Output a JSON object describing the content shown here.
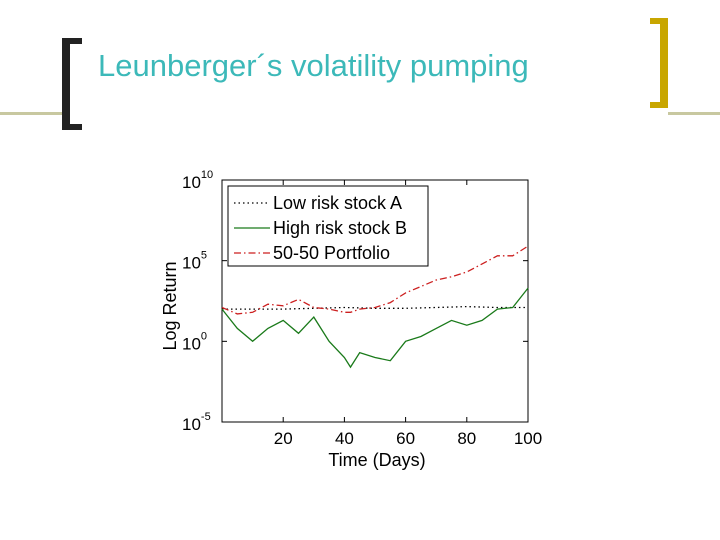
{
  "slide": {
    "title": "Leunberger´s volatility pumping"
  },
  "colors": {
    "title": "#3cb9b9",
    "bracket": "#222222",
    "accent": "#c8a600",
    "divider": "#c8c8a0"
  },
  "chart_data": {
    "type": "line",
    "title": "",
    "xlabel": "Time (Days)",
    "ylabel": "Log Return",
    "xlim": [
      0,
      100
    ],
    "ylim_log10": [
      -5,
      10
    ],
    "y_scale": "log",
    "x_ticks": [
      20,
      40,
      60,
      80,
      100
    ],
    "x_tick_labels": [
      "20",
      "40",
      "60",
      "80",
      "100"
    ],
    "y_ticks_log10": [
      10,
      5,
      0,
      -5
    ],
    "y_tick_labels": [
      {
        "base": "10",
        "exp": "10"
      },
      {
        "base": "10",
        "exp": "5"
      },
      {
        "base": "10",
        "exp": "0"
      },
      {
        "base": "10",
        "exp": "-5"
      }
    ],
    "legend_position": "top-left",
    "series": [
      {
        "name": "Low risk stock A",
        "color": "#000000",
        "style": "dotted",
        "x": [
          0,
          10,
          20,
          30,
          40,
          50,
          60,
          70,
          80,
          90,
          100
        ],
        "log10_values": [
          2.0,
          2.0,
          2.0,
          2.05,
          2.1,
          2.05,
          2.05,
          2.1,
          2.15,
          2.1,
          2.1
        ]
      },
      {
        "name": "High risk stock B",
        "color": "#1a7a1a",
        "style": "solid",
        "x": [
          0,
          5,
          10,
          15,
          20,
          25,
          30,
          35,
          40,
          42,
          45,
          50,
          55,
          60,
          65,
          70,
          75,
          80,
          85,
          90,
          95,
          100
        ],
        "log10_values": [
          2.0,
          0.8,
          0.0,
          0.8,
          1.3,
          0.5,
          1.5,
          0.0,
          -1.0,
          -1.6,
          -0.7,
          -1.0,
          -1.2,
          0.0,
          0.3,
          0.8,
          1.3,
          1.0,
          1.3,
          2.0,
          2.1,
          3.3
        ]
      },
      {
        "name": "50-50 Portfolio",
        "color": "#cc1f1f",
        "style": "dashdot",
        "x": [
          0,
          5,
          10,
          15,
          20,
          25,
          30,
          35,
          40,
          42,
          45,
          50,
          55,
          60,
          65,
          70,
          75,
          80,
          85,
          90,
          95,
          100
        ],
        "log10_values": [
          2.1,
          1.7,
          1.8,
          2.3,
          2.2,
          2.6,
          2.1,
          2.0,
          1.8,
          1.8,
          2.0,
          2.1,
          2.4,
          3.0,
          3.4,
          3.8,
          4.0,
          4.3,
          4.8,
          5.3,
          5.3,
          5.9
        ]
      }
    ]
  }
}
